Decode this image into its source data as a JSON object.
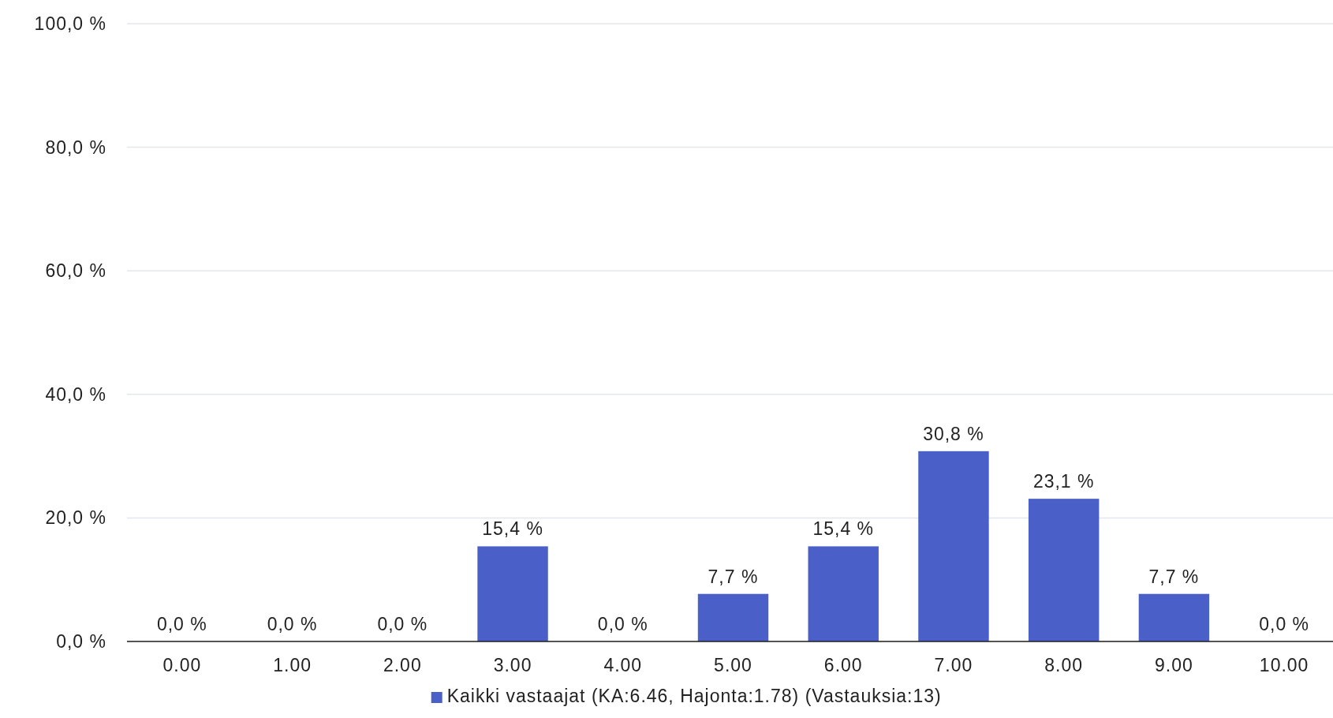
{
  "chart_data": {
    "type": "bar",
    "categories": [
      "0.00",
      "1.00",
      "2.00",
      "3.00",
      "4.00",
      "5.00",
      "6.00",
      "7.00",
      "8.00",
      "9.00",
      "10.00"
    ],
    "series": [
      {
        "name": "Kaikki vastaajat (KA:6.46, Hajonta:1.78) (Vastauksia:13)",
        "color": "#4a60c8",
        "values": [
          0,
          0,
          0,
          15.4,
          0,
          7.7,
          15.4,
          30.8,
          23.1,
          7.7,
          0
        ],
        "value_labels": [
          "0,0 %",
          "0,0 %",
          "0,0 %",
          "15,4 %",
          "0,0 %",
          "7,7 %",
          "15,4 %",
          "30,8 %",
          "23,1 %",
          "7,7 %",
          "0,0 %"
        ]
      }
    ],
    "ylim": [
      0,
      100
    ],
    "yticks": [
      {
        "value": 0,
        "label": "0,0 %"
      },
      {
        "value": 20,
        "label": "20,0 %"
      },
      {
        "value": 40,
        "label": "40,0 %"
      },
      {
        "value": 60,
        "label": "60,0 %"
      },
      {
        "value": 80,
        "label": "80,0 %"
      },
      {
        "value": 100,
        "label": "100,0 %"
      }
    ],
    "grid": "y",
    "legend": "bottom"
  }
}
